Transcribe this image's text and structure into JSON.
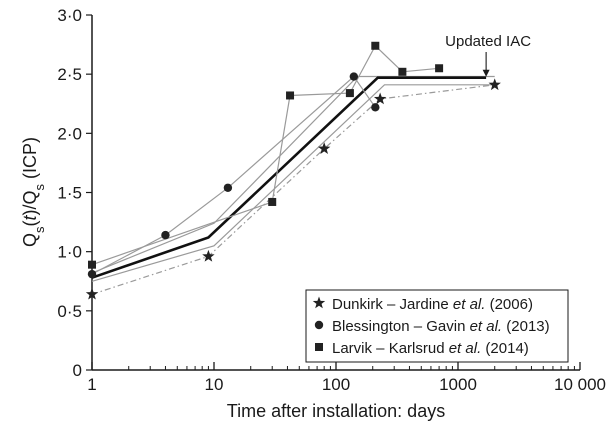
{
  "chart_data": {
    "type": "line",
    "x_scale": "log",
    "xlim": [
      1,
      10000
    ],
    "ylim": [
      0,
      3.0
    ],
    "x_ticks": [
      1,
      10,
      100,
      1000,
      10000
    ],
    "x_tick_labels": [
      "1",
      "10",
      "100",
      "1000",
      "10 000"
    ],
    "y_ticks": [
      0,
      0.5,
      1.0,
      1.5,
      2.0,
      2.5,
      3.0
    ],
    "y_tick_labels": [
      "0",
      "0·5",
      "1·0",
      "1·5",
      "2·0",
      "2·5",
      "3·0"
    ],
    "xlabel": "Time after installation: days",
    "ylabel": {
      "parts": [
        {
          "text": "Q",
          "style": "normal"
        },
        {
          "text": "s",
          "style": "sub"
        },
        {
          "text": "(",
          "style": "normal"
        },
        {
          "text": "t",
          "style": "italic"
        },
        {
          "text": ")/Q",
          "style": "normal"
        },
        {
          "text": "s",
          "style": "sub"
        },
        {
          "text": " (ICP)",
          "style": "normal"
        }
      ]
    },
    "grid": false,
    "legend_position": "bottom-right",
    "series": [
      {
        "name_parts": [
          {
            "text": "Dunkirk – Jardine ",
            "style": "normal"
          },
          {
            "text": "et al.",
            "style": "italic"
          },
          {
            "text": " (2006)",
            "style": "normal"
          }
        ],
        "marker": "star",
        "points": [
          [
            1,
            0.64
          ],
          [
            9,
            0.96
          ],
          [
            80,
            1.87
          ],
          [
            230,
            2.29
          ],
          [
            2000,
            2.41
          ]
        ],
        "trend": [
          [
            1,
            0.64
          ],
          [
            9,
            0.96
          ],
          [
            80,
            1.87
          ],
          [
            230,
            2.29
          ],
          [
            2000,
            2.41
          ]
        ],
        "trend_style": "dashdot"
      },
      {
        "name_parts": [
          {
            "text": "Blessington – Gavin ",
            "style": "normal"
          },
          {
            "text": "et al.",
            "style": "italic"
          },
          {
            "text": " (2013)",
            "style": "normal"
          }
        ],
        "marker": "circle",
        "points": [
          [
            1,
            0.81
          ],
          [
            4,
            1.14
          ],
          [
            13,
            1.54
          ],
          [
            140,
            2.48
          ],
          [
            210,
            2.22
          ]
        ],
        "trend": [
          [
            1,
            0.81
          ],
          [
            4,
            1.14
          ],
          [
            13,
            1.54
          ],
          [
            140,
            2.48
          ],
          [
            210,
            2.22
          ]
        ],
        "trend_style": "solid"
      },
      {
        "name_parts": [
          {
            "text": "Larvik – Karlsrud ",
            "style": "normal"
          },
          {
            "text": "et al.",
            "style": "italic"
          },
          {
            "text": " (2014)",
            "style": "normal"
          }
        ],
        "marker": "square",
        "points": [
          [
            1,
            0.89
          ],
          [
            30,
            1.42
          ],
          [
            42,
            2.32
          ],
          [
            130,
            2.34
          ],
          [
            210,
            2.74
          ],
          [
            350,
            2.52
          ],
          [
            700,
            2.55
          ]
        ],
        "trend": [
          [
            1,
            0.89
          ],
          [
            30,
            1.42
          ],
          [
            42,
            2.32
          ],
          [
            130,
            2.34
          ],
          [
            210,
            2.74
          ],
          [
            350,
            2.52
          ],
          [
            700,
            2.55
          ]
        ],
        "trend_style": "solid"
      }
    ],
    "reference_lines": [
      {
        "role": "lower-bound",
        "points": [
          [
            1,
            0.75
          ],
          [
            10,
            1.05
          ],
          [
            250,
            2.41
          ],
          [
            2000,
            2.41
          ]
        ],
        "style": "solid-thin"
      },
      {
        "role": "upper-bound",
        "points": [
          [
            1,
            0.82
          ],
          [
            10,
            1.24
          ],
          [
            150,
            2.48
          ],
          [
            2000,
            2.48
          ]
        ],
        "style": "solid-thin"
      },
      {
        "role": "iac-fit",
        "points": [
          [
            1,
            0.78
          ],
          [
            9,
            1.12
          ],
          [
            220,
            2.47
          ],
          [
            1700,
            2.47
          ]
        ],
        "style": "solid-bold"
      }
    ],
    "annotations": [
      {
        "text": "Updated IAC",
        "points_to": [
          1700,
          2.47
        ]
      }
    ]
  },
  "colors": {
    "axis": "#1a1a1a",
    "series_line": "#9a9a9a",
    "marker": "#222222",
    "iac_line": "#111111"
  }
}
